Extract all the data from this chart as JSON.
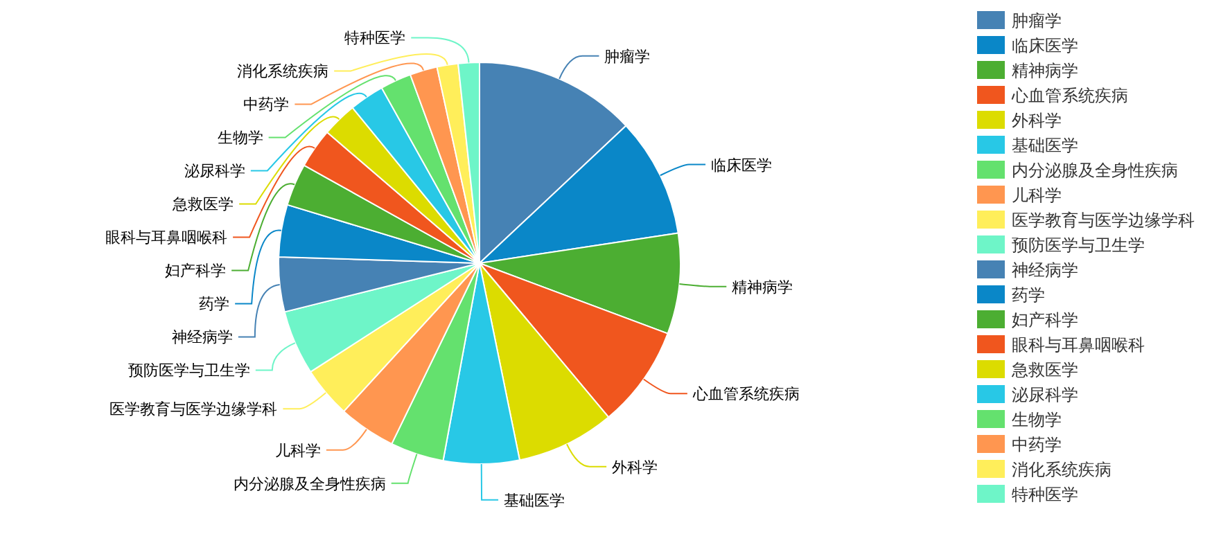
{
  "chart_data": {
    "type": "pie",
    "legend": "right",
    "categories": [
      "肿瘤学",
      "临床医学",
      "精神病学",
      "心血管系统疾病",
      "外科学",
      "基础医学",
      "内分泌腺及全身性疾病",
      "儿科学",
      "医学教育与医学边缘学科",
      "预防医学与卫生学",
      "神经病学",
      "药学",
      "妇产科学",
      "眼科与耳鼻咽喉科",
      "急救医学",
      "泌尿科学",
      "生物学",
      "中药学",
      "消化系统疾病",
      "特种医学"
    ],
    "values": [
      13,
      9.6,
      8.1,
      8.2,
      7.9,
      6.1,
      4.3,
      4.6,
      4.1,
      5.2,
      4.4,
      4.2,
      3.4,
      3.2,
      2.8,
      2.8,
      2.5,
      2.2,
      1.7,
      1.7
    ],
    "colors": [
      "#4682b4",
      "#0a87c8",
      "#4cae32",
      "#f0561e",
      "#dcdc00",
      "#28c8e6",
      "#64e16e",
      "#ff9650",
      "#ffee5a",
      "#6ef5c8",
      "#4682b4",
      "#0a87c8",
      "#4cae32",
      "#f0561e",
      "#dcdc00",
      "#28c8e6",
      "#64e16e",
      "#ff9650",
      "#ffee5a",
      "#6ef5c8"
    ]
  }
}
